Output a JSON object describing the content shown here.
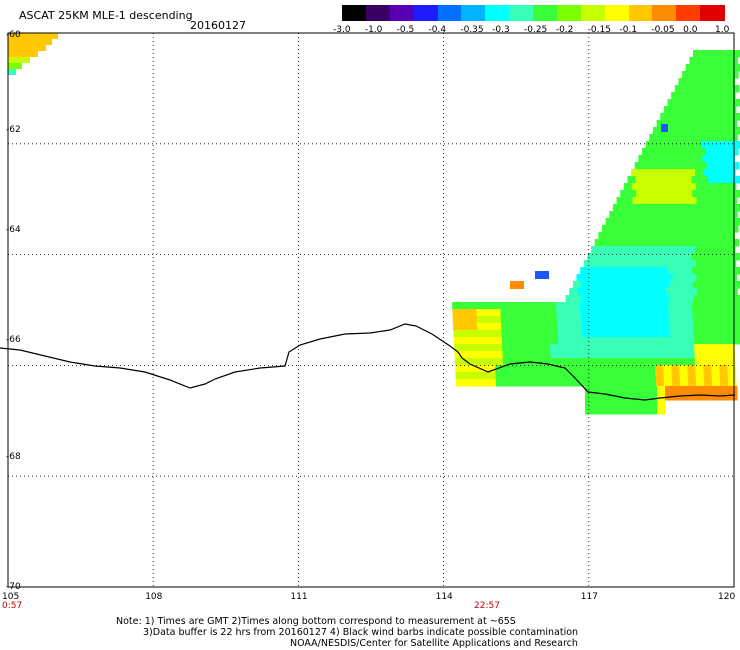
{
  "title": "ASCAT 25KM MLE-1 descending",
  "date": "20160127",
  "colorbar": {
    "labels": [
      "-3.0",
      "-1.0",
      "-0.5",
      "-0.4",
      "-0.35",
      "-0.3",
      "-0.25",
      "-0.2",
      "-0.15",
      "-0.1",
      "-0.05",
      "0.0",
      "1.0"
    ],
    "colors": [
      "#000000",
      "#3a0066",
      "#5a00b4",
      "#1c1cff",
      "#0070ff",
      "#00b4ff",
      "#00ffff",
      "#38ffb8",
      "#38ff38",
      "#7cff00",
      "#c8ff00",
      "#ffff00",
      "#ffc800",
      "#ff8c00",
      "#ff3c00",
      "#e00000"
    ]
  },
  "axes": {
    "lat_labels": [
      "-60",
      "-62",
      "-64",
      "-66",
      "-68",
      "-70"
    ],
    "lat_values": [
      -60,
      -62,
      -64,
      -66,
      -68,
      -70
    ],
    "lon_labels": [
      "105",
      "108",
      "111",
      "114",
      "117",
      "120"
    ],
    "lon_values": [
      105,
      108,
      111,
      114,
      117,
      120
    ]
  },
  "pass_times": [
    {
      "label": "0:57"
    },
    {
      "label": "22:57"
    }
  ],
  "notes": [
    "Note: 1) Times are GMT 2)Times along bottom correspond to measurement at ~65S",
    "3)Data buffer is 22 hrs from 20160127 4) Black wind barbs indicate possible contamination",
    "NOAA/NESDIS/Center for Satellite Applications and Research"
  ]
}
